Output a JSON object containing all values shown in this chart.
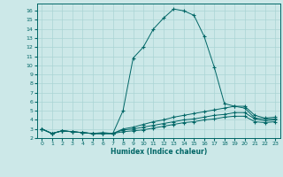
{
  "xlabel": "Humidex (Indice chaleur)",
  "background_color": "#cce8e8",
  "grid_color": "#aad4d4",
  "line_color": "#006666",
  "xlim": [
    -0.5,
    23.5
  ],
  "ylim": [
    2,
    16.8
  ],
  "xticks": [
    0,
    1,
    2,
    3,
    4,
    5,
    6,
    7,
    8,
    9,
    10,
    11,
    12,
    13,
    14,
    15,
    16,
    17,
    18,
    19,
    20,
    21,
    22,
    23
  ],
  "yticks": [
    2,
    3,
    4,
    5,
    6,
    7,
    8,
    9,
    10,
    11,
    12,
    13,
    14,
    15,
    16
  ],
  "line1_x": [
    0,
    1,
    2,
    3,
    4,
    5,
    6,
    7,
    8,
    9,
    10,
    11,
    12,
    13,
    14,
    15,
    16,
    17,
    18,
    19,
    20,
    21,
    22,
    23
  ],
  "line1_y": [
    3.0,
    2.5,
    2.8,
    2.7,
    2.6,
    2.5,
    2.5,
    2.5,
    5.0,
    10.8,
    12.0,
    14.0,
    15.2,
    16.2,
    16.0,
    15.5,
    13.2,
    9.8,
    5.8,
    5.5,
    5.3,
    4.2,
    4.1,
    4.1
  ],
  "line2_x": [
    0,
    1,
    2,
    3,
    4,
    5,
    6,
    7,
    8,
    9,
    10,
    11,
    12,
    13,
    14,
    15,
    16,
    17,
    18,
    19,
    20,
    21,
    22,
    23
  ],
  "line2_y": [
    3.0,
    2.5,
    2.8,
    2.7,
    2.6,
    2.5,
    2.6,
    2.5,
    3.0,
    3.2,
    3.5,
    3.8,
    4.0,
    4.3,
    4.5,
    4.7,
    4.9,
    5.1,
    5.3,
    5.5,
    5.5,
    4.5,
    4.2,
    4.3
  ],
  "line3_x": [
    0,
    1,
    2,
    3,
    4,
    5,
    6,
    7,
    8,
    9,
    10,
    11,
    12,
    13,
    14,
    15,
    16,
    17,
    18,
    19,
    20,
    21,
    22,
    23
  ],
  "line3_y": [
    3.0,
    2.5,
    2.8,
    2.7,
    2.6,
    2.5,
    2.5,
    2.5,
    2.9,
    3.0,
    3.2,
    3.4,
    3.6,
    3.8,
    4.0,
    4.1,
    4.3,
    4.5,
    4.6,
    4.8,
    4.8,
    4.1,
    3.9,
    4.0
  ],
  "line4_x": [
    0,
    1,
    2,
    3,
    4,
    5,
    6,
    7,
    8,
    9,
    10,
    11,
    12,
    13,
    14,
    15,
    16,
    17,
    18,
    19,
    20,
    21,
    22,
    23
  ],
  "line4_y": [
    3.0,
    2.5,
    2.8,
    2.7,
    2.6,
    2.5,
    2.5,
    2.5,
    2.7,
    2.8,
    2.9,
    3.1,
    3.3,
    3.5,
    3.7,
    3.8,
    4.0,
    4.1,
    4.3,
    4.4,
    4.4,
    3.8,
    3.7,
    3.8
  ]
}
